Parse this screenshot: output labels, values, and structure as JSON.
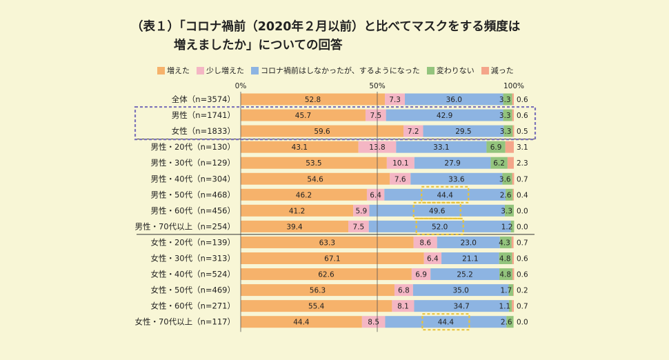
{
  "title": {
    "line1": "（表１）「コロナ禍前（2020年２月以前）と比べてマスクをする頻度は",
    "line2": "増えましたか」についての回答"
  },
  "chart_data": {
    "type": "bar",
    "orientation": "horizontal",
    "stacked": true,
    "unit": "%",
    "xlim": [
      0,
      100
    ],
    "ticks": [
      "0%",
      "50%",
      "100%"
    ],
    "grid": false,
    "legend_position": "top",
    "series": [
      {
        "name": "増えた",
        "color": "#f6b26b"
      },
      {
        "name": "少し増えた",
        "color": "#f4b6c4"
      },
      {
        "name": "コロナ禍前はしなかったが、するようになった",
        "color": "#8db4e2"
      },
      {
        "name": "変わりない",
        "color": "#93c47d"
      },
      {
        "name": "減った",
        "color": "#f4a58a"
      }
    ],
    "rows": [
      {
        "label": "全体（n=3574）",
        "values": [
          52.8,
          7.3,
          36.0,
          3.3,
          0.6
        ]
      },
      {
        "label": "男性（n=1741）",
        "values": [
          45.7,
          7.5,
          42.9,
          3.3,
          0.6
        ]
      },
      {
        "label": "女性（n=1833）",
        "values": [
          59.6,
          7.2,
          29.5,
          3.3,
          0.5
        ]
      },
      {
        "label": "男性・20代（n=130）",
        "values": [
          43.1,
          13.8,
          33.1,
          6.9,
          3.1
        ]
      },
      {
        "label": "男性・30代（n=129）",
        "values": [
          53.5,
          10.1,
          27.9,
          6.2,
          2.3
        ]
      },
      {
        "label": "男性・40代（n=304）",
        "values": [
          54.6,
          7.6,
          33.6,
          3.6,
          0.7
        ]
      },
      {
        "label": "男性・50代（n=468）",
        "values": [
          46.2,
          6.4,
          44.4,
          2.6,
          0.4
        ]
      },
      {
        "label": "男性・60代（n=456）",
        "values": [
          41.2,
          5.9,
          49.6,
          3.3,
          0.0
        ]
      },
      {
        "label": "男性・70代以上（n=254）",
        "values": [
          39.4,
          7.5,
          52.0,
          1.2,
          0.0
        ]
      },
      {
        "label": "女性・20代（n=139）",
        "values": [
          63.3,
          8.6,
          23.0,
          4.3,
          0.7
        ]
      },
      {
        "label": "女性・30代（n=313）",
        "values": [
          67.1,
          6.4,
          21.1,
          4.8,
          0.6
        ]
      },
      {
        "label": "女性・40代（n=524）",
        "values": [
          62.6,
          6.9,
          25.2,
          4.8,
          0.6
        ]
      },
      {
        "label": "女性・50代（n=469）",
        "values": [
          56.3,
          6.8,
          35.0,
          1.7,
          0.2
        ]
      },
      {
        "label": "女性・60代（n=271）",
        "values": [
          55.4,
          8.1,
          34.7,
          1.1,
          0.7
        ]
      },
      {
        "label": "女性・70代以上（n=117）",
        "values": [
          44.4,
          8.5,
          44.4,
          2.6,
          0.0
        ]
      }
    ],
    "highlight_rows": [
      1,
      2
    ],
    "highlight_cells": [
      [
        6,
        2
      ],
      [
        7,
        2
      ],
      [
        8,
        2
      ],
      [
        14,
        2
      ]
    ],
    "highlight_row_color": "#7b72b8",
    "highlight_cell_color": "#e8c33a"
  }
}
